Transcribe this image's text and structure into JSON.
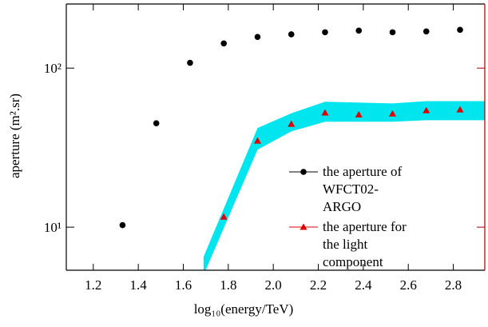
{
  "chart_data": {
    "type": "scatter",
    "xlabel": "log₁₀(energy/TeV)",
    "ylabel": "aperture (m².sr)",
    "xlim": [
      1.08,
      2.94
    ],
    "xticks": [
      1.2,
      1.4,
      1.6,
      1.8,
      {
        "value": 2,
        "label": "2.0"
      },
      2.2,
      2.4,
      2.6,
      2.8
    ],
    "ylim": [
      5.36,
      253
    ],
    "yticks": [
      {
        "value": 10,
        "label": "10¹"
      },
      {
        "value": 100,
        "label": "10²"
      }
    ],
    "log_y": true,
    "band": {
      "color": "#00e5ee",
      "x": [
        1.69,
        1.93,
        2.08,
        2.23,
        2.53,
        2.68,
        2.94
      ],
      "upper": [
        6.5,
        42,
        52,
        61.5,
        60,
        62,
        62
      ],
      "lower": [
        5.0,
        30.7,
        40,
        46,
        46,
        47,
        47
      ]
    },
    "series": [
      {
        "name": "the aperture of WFCT02-ARGO",
        "color": "#000000",
        "marker": "circle",
        "x": [
          1.33,
          1.48,
          1.63,
          1.78,
          1.93,
          2.08,
          2.23,
          2.38,
          2.53,
          2.68,
          2.83
        ],
        "values": [
          10.3,
          45,
          108,
          143,
          157,
          163,
          168,
          172,
          168,
          170,
          174
        ]
      },
      {
        "name": "the aperture for the light component",
        "color": "#e00000",
        "marker": "triangle",
        "x": [
          1.78,
          1.93,
          2.08,
          2.23,
          2.38,
          2.53,
          2.68,
          2.83
        ],
        "values": [
          11.6,
          34.9,
          44.5,
          52.4,
          51,
          51.7,
          54.2,
          54.8
        ]
      }
    ]
  }
}
